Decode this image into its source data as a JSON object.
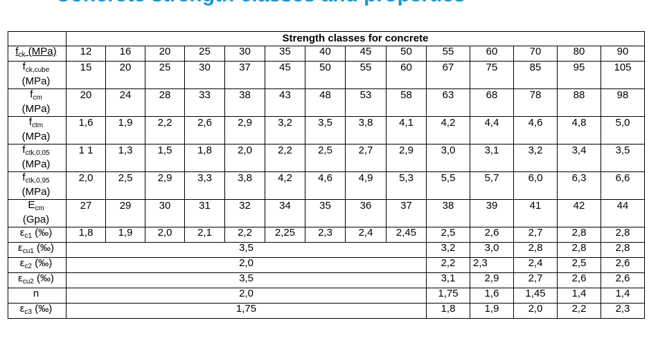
{
  "title": "Concrete strength classes and properties",
  "header": "Strength classes for concrete",
  "rows": [
    {
      "sym": "f",
      "sub": "ck",
      "unit": " (MPa)",
      "values": [
        "12",
        "16",
        "20",
        "25",
        "30",
        "35",
        "40",
        "45",
        "50",
        "55",
        "60",
        "70",
        "80",
        "90"
      ]
    },
    {
      "sym": "f",
      "sub": "ck,cube",
      "unit": "(MPa)",
      "values": [
        "15",
        "20",
        "25",
        "30",
        "37",
        "45",
        "50",
        "55",
        "60",
        "67",
        "75",
        "85",
        "95",
        "105"
      ]
    },
    {
      "sym": "f",
      "sub": "cm",
      "unit": "(MPa)",
      "values": [
        "20",
        "24",
        "28",
        "33",
        "38",
        "43",
        "48",
        "53",
        "58",
        "63",
        "68",
        "78",
        "88",
        "98"
      ]
    },
    {
      "sym": "f",
      "sub": "ctm",
      "unit": "(MPa)",
      "values": [
        "1,6",
        "1,9",
        "2,2",
        "2,6",
        "2,9",
        "3,2",
        "3,5",
        "3,8",
        "4,1",
        "4,2",
        "4,4",
        "4,6",
        "4,8",
        "5,0"
      ]
    },
    {
      "sym": "f",
      "sub": "ctk,0,05",
      "unit": "(MPa)",
      "values": [
        "1 1",
        "1,3",
        "1,5",
        "1,8",
        "2,0",
        "2,2",
        "2,5",
        "2,7",
        "2,9",
        "3,0",
        "3,1",
        "3,2",
        "3,4",
        "3,5"
      ]
    },
    {
      "sym": "f",
      "sub": "ctk,0,95",
      "unit": "(MPa)",
      "values": [
        "2,0",
        "2,5",
        "2,9",
        "3,3",
        "3,8",
        "4,2",
        "4,6",
        "4,9",
        "5,3",
        "5,5",
        "5,7",
        "6,0",
        "6,3",
        "6,6"
      ]
    },
    {
      "sym": "E",
      "sub": "cm",
      "unit": "(Gpa)",
      "values": [
        "27",
        "29",
        "30",
        "31",
        "32",
        "34",
        "35",
        "36",
        "37",
        "38",
        "39",
        "41",
        "42",
        "44"
      ]
    },
    {
      "sym": "ε",
      "sub": "c1",
      "unit": " (‰)",
      "values": [
        "1,8",
        "1,9",
        "2,0",
        "2,1",
        "2,2",
        "2,25",
        "2,3",
        "2,4",
        "2,45",
        "2,5",
        "2,6",
        "2,7",
        "2,8",
        "2,8"
      ]
    },
    {
      "sym": "ε",
      "sub": "cu1",
      "unit": " (‰)",
      "shared": "3,5",
      "values": [
        "3,2",
        "3,0",
        "2,8",
        "2,8",
        "2,8"
      ]
    },
    {
      "sym": "ε",
      "sub": "c2",
      "unit": " (‰)",
      "shared": "2,0",
      "values": [
        "2,2",
        "2,3",
        "2,4",
        "2,5",
        "2,6"
      ]
    },
    {
      "sym": "ε",
      "sub": "cu2",
      "unit": " (‰)",
      "shared": "3,5",
      "values": [
        "3,1",
        "2,9",
        "2,7",
        "2,6",
        "2,6"
      ]
    },
    {
      "sym": "n",
      "sub": "",
      "unit": "",
      "shared": "2,0",
      "values": [
        "1,75",
        "1,6",
        "1,45",
        "1,4",
        "1,4"
      ]
    },
    {
      "sym": "ε",
      "sub": "c3",
      "unit": " (‰)",
      "shared": "1,75",
      "values": [
        "1,8",
        "1,9",
        "2,0",
        "2,2",
        "2,3"
      ]
    }
  ]
}
